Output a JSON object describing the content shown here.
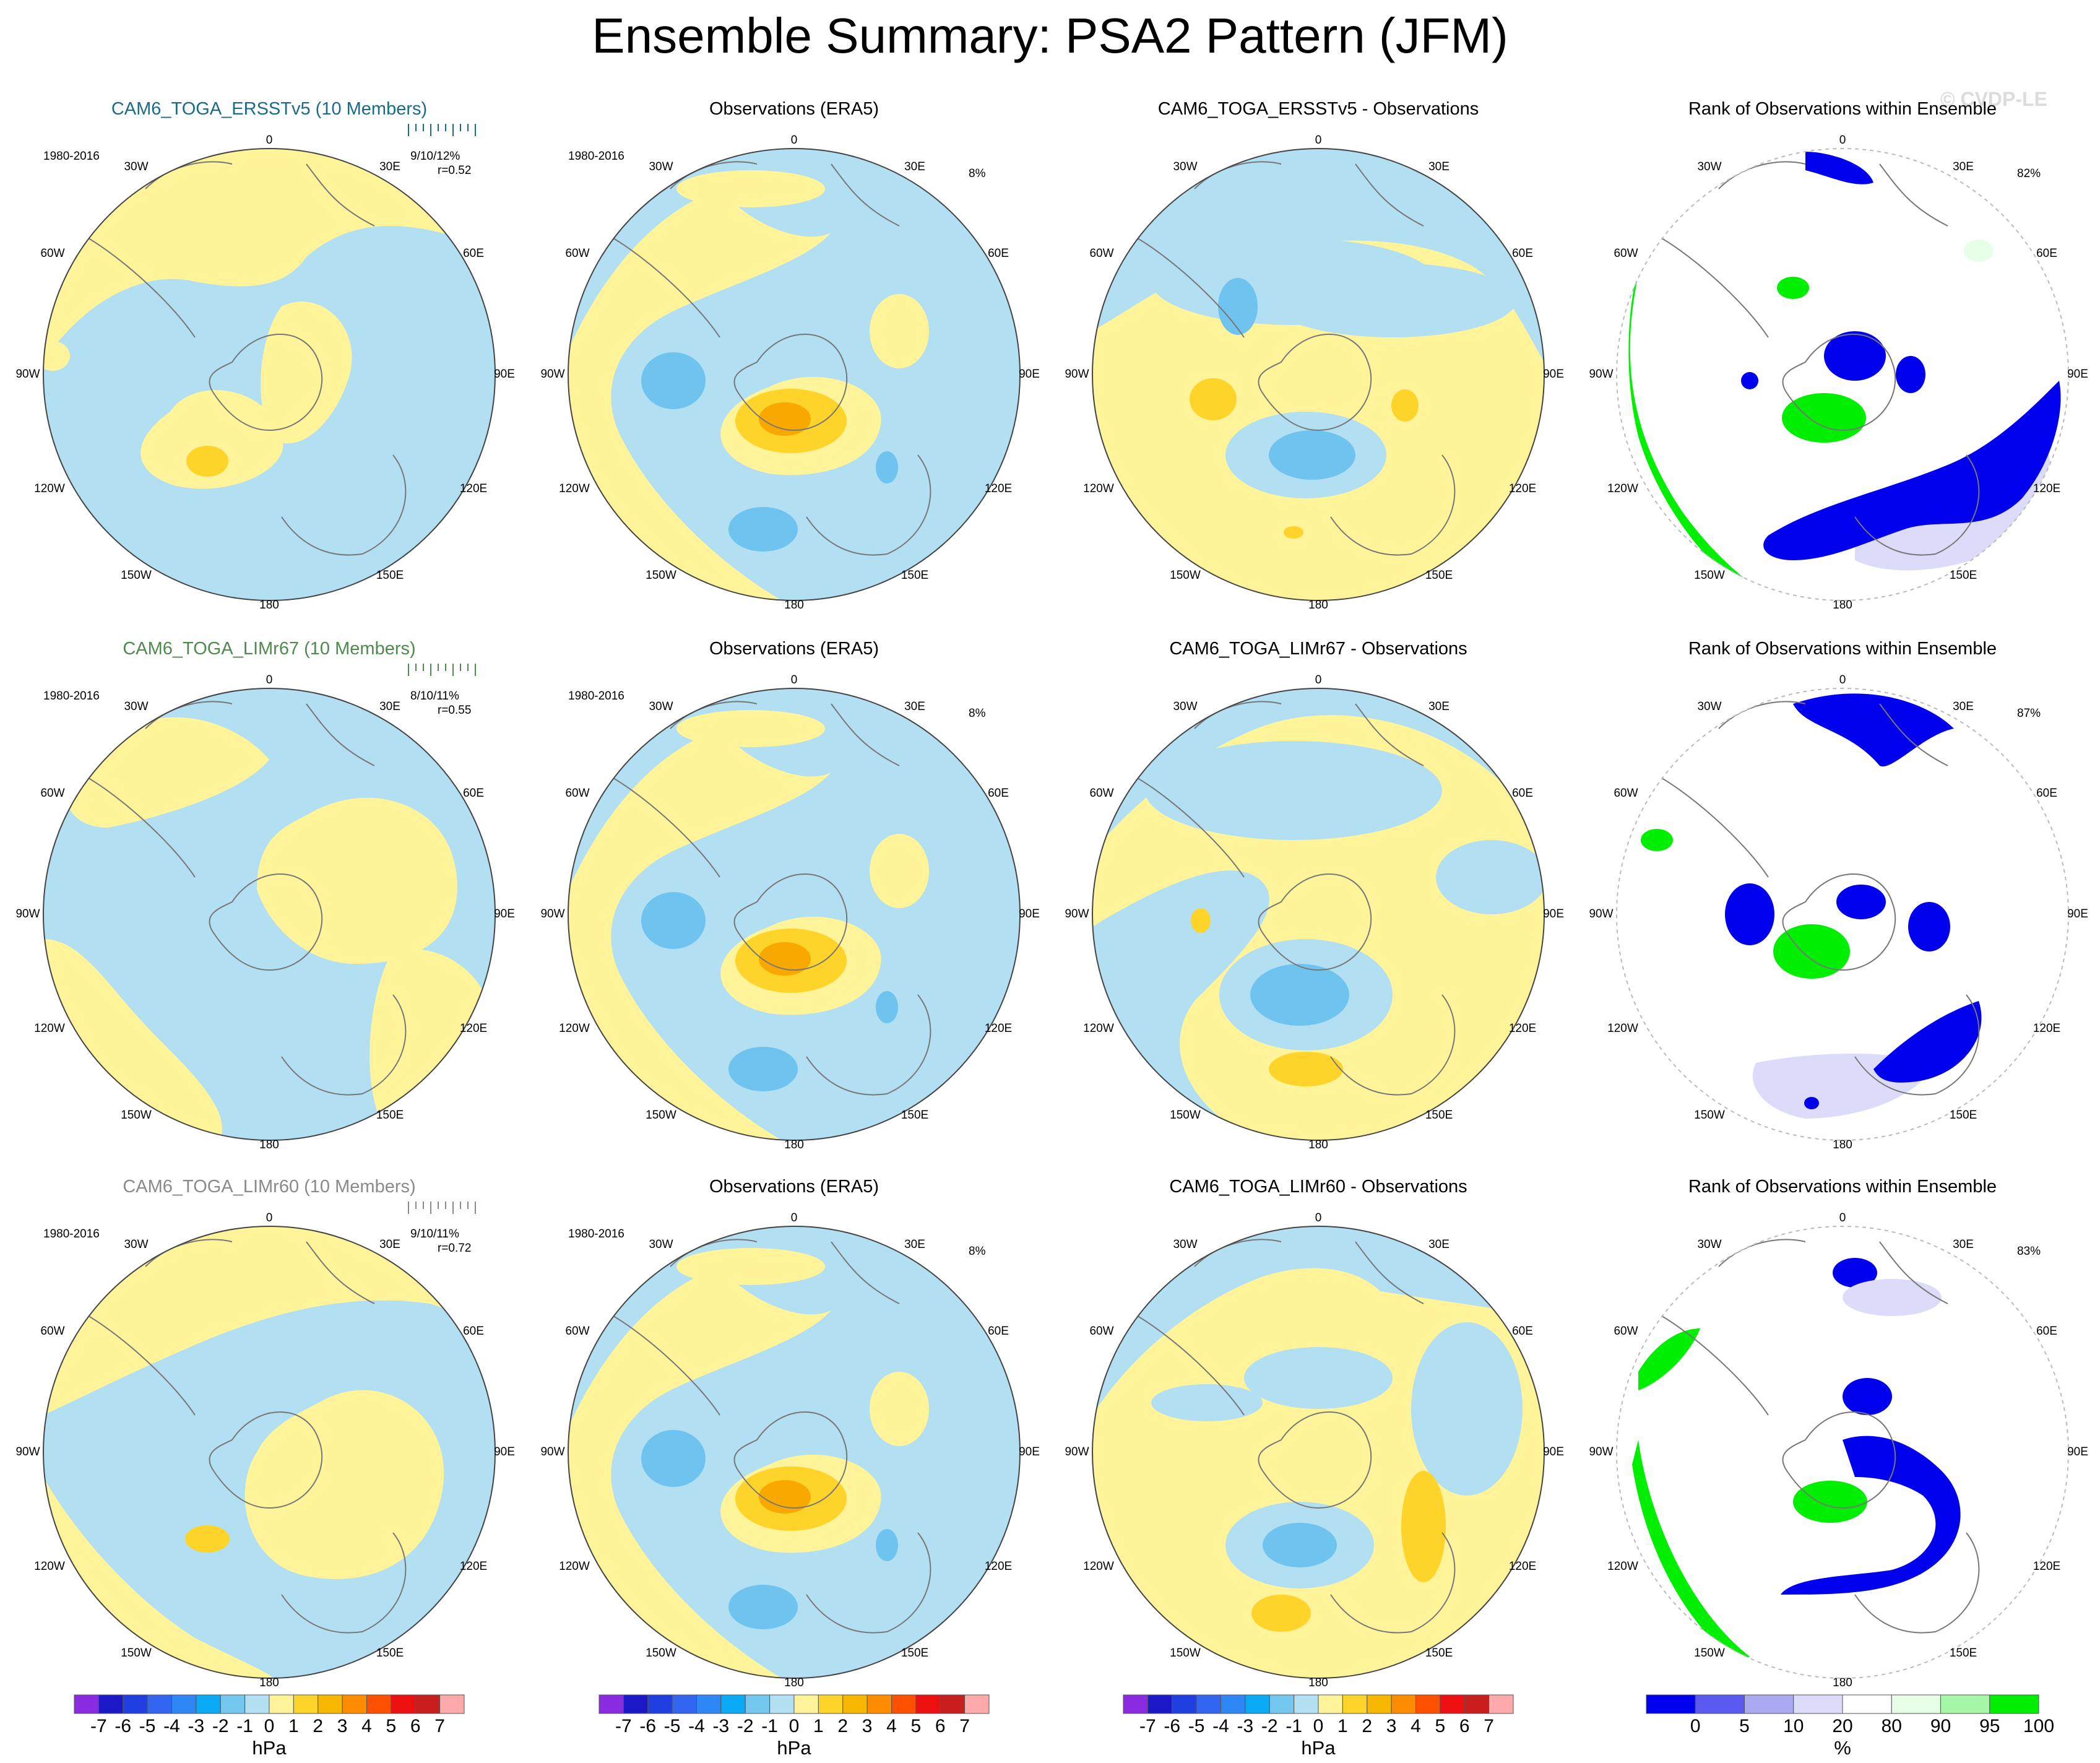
{
  "title": "Ensemble Summary: PSA2 Pattern (JFM)",
  "watermark": "© CVDP-LE",
  "colors": {
    "neg1": "#b3dff2",
    "pos1": "#fff49a",
    "pos2": "#ffd42a",
    "pos3": "#f9a800",
    "neg2": "#6ec3ef",
    "neg3": "#3d9de8",
    "rank_low": "#0000ee",
    "rank_mid_low": "#dcdcfa",
    "rank_high": "#00ee00",
    "rank_high_soft": "#e6ffe6",
    "ens_title_1": "#1a6b8a",
    "ens_title_2": "#4f8a4f",
    "ens_title_3": "#8a8a8a"
  },
  "rows": [
    {
      "model": {
        "title": "CAM6_TOGA_ERSSTv5 (10 Members)",
        "period": "1980-2016",
        "stats": "9/10/12%",
        "r": "r=0.52"
      },
      "obs": {
        "title": "Observations (ERA5)",
        "period": "1980-2016",
        "pct": "8%"
      },
      "diff": {
        "title": "CAM6_TOGA_ERSSTv5 - Observations"
      },
      "rank": {
        "title": "Rank of Observations within Ensemble",
        "pct": "82%"
      }
    },
    {
      "model": {
        "title": "CAM6_TOGA_LIMr67 (10 Members)",
        "period": "1980-2016",
        "stats": "8/10/11%",
        "r": "r=0.55"
      },
      "obs": {
        "title": "Observations (ERA5)",
        "period": "1980-2016",
        "pct": "8%"
      },
      "diff": {
        "title": "CAM6_TOGA_LIMr67 - Observations"
      },
      "rank": {
        "title": "Rank of Observations within Ensemble",
        "pct": "87%"
      }
    },
    {
      "model": {
        "title": "CAM6_TOGA_LIMr60 (10 Members)",
        "period": "1980-2016",
        "stats": "9/10/11%",
        "r": "r=0.72"
      },
      "obs": {
        "title": "Observations (ERA5)",
        "period": "1980-2016",
        "pct": "8%"
      },
      "diff": {
        "title": "CAM6_TOGA_LIMr60 - Observations"
      },
      "rank": {
        "title": "Rank of Observations within Ensemble",
        "pct": "83%"
      }
    }
  ],
  "lon_labels": [
    "0",
    "30E",
    "60E",
    "90E",
    "120E",
    "150E",
    "180",
    "150W",
    "120W",
    "90W",
    "60W",
    "30W"
  ],
  "colorbar_hpa": {
    "labels": [
      "-7",
      "-6",
      "-5",
      "-4",
      "-3",
      "-2",
      "-1",
      "0",
      "1",
      "2",
      "3",
      "4",
      "5",
      "6",
      "7"
    ],
    "unit": "hPa",
    "colors": [
      "#8a2be2",
      "#1b18c8",
      "#1f3fe0",
      "#3366f0",
      "#2f86f5",
      "#0aaaf5",
      "#74c8f0",
      "#b3dff2",
      "#fff49a",
      "#ffd42a",
      "#f9b800",
      "#ff8c00",
      "#ff5000",
      "#ee1010",
      "#c81e1e",
      "#ffaaaa"
    ]
  },
  "colorbar_rank": {
    "labels": [
      "0",
      "5",
      "10",
      "20",
      "80",
      "90",
      "95",
      "100"
    ],
    "unit": "%",
    "colors": [
      "#0000ee",
      "#5a5af0",
      "#aaaaf2",
      "#dcdcfa",
      "#ffffff",
      "#e6ffe6",
      "#a6f7a6",
      "#00ee00"
    ]
  }
}
